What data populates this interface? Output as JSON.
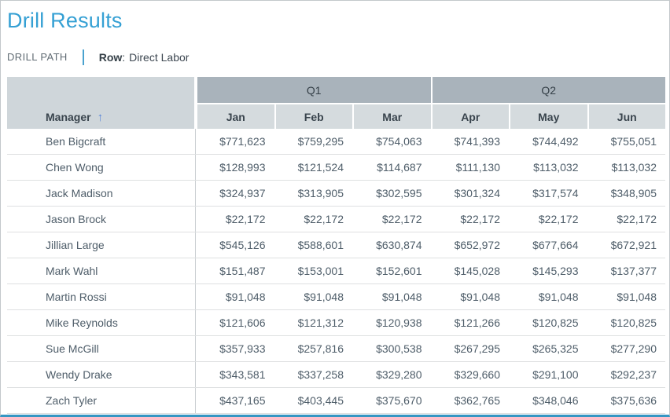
{
  "page": {
    "title": "Drill Results",
    "drill_path": {
      "label": "DRILL PATH",
      "key": "Row",
      "separator": ":",
      "value": "Direct Labor"
    }
  },
  "table": {
    "manager_header": "Manager",
    "sort_icon": "↑",
    "quarters": [
      "Q1",
      "Q2"
    ],
    "months": [
      "Jan",
      "Feb",
      "Mar",
      "Apr",
      "May",
      "Jun"
    ],
    "rows": [
      {
        "manager": "Ben Bigcraft",
        "values": [
          "$771,623",
          "$759,295",
          "$754,063",
          "$741,393",
          "$744,492",
          "$755,051"
        ]
      },
      {
        "manager": "Chen Wong",
        "values": [
          "$128,993",
          "$121,524",
          "$114,687",
          "$111,130",
          "$113,032",
          "$113,032"
        ]
      },
      {
        "manager": "Jack Madison",
        "values": [
          "$324,937",
          "$313,905",
          "$302,595",
          "$301,324",
          "$317,574",
          "$348,905"
        ]
      },
      {
        "manager": "Jason Brock",
        "values": [
          "$22,172",
          "$22,172",
          "$22,172",
          "$22,172",
          "$22,172",
          "$22,172"
        ]
      },
      {
        "manager": "Jillian Large",
        "values": [
          "$545,126",
          "$588,601",
          "$630,874",
          "$652,972",
          "$677,664",
          "$672,921"
        ]
      },
      {
        "manager": "Mark Wahl",
        "values": [
          "$151,487",
          "$153,001",
          "$152,601",
          "$145,028",
          "$145,293",
          "$137,377"
        ]
      },
      {
        "manager": "Martin Rossi",
        "values": [
          "$91,048",
          "$91,048",
          "$91,048",
          "$91,048",
          "$91,048",
          "$91,048"
        ]
      },
      {
        "manager": "Mike Reynolds",
        "values": [
          "$121,606",
          "$121,312",
          "$120,938",
          "$121,266",
          "$120,825",
          "$120,825"
        ]
      },
      {
        "manager": "Sue McGill",
        "values": [
          "$357,933",
          "$257,816",
          "$300,538",
          "$267,295",
          "$265,325",
          "$277,290"
        ]
      },
      {
        "manager": "Wendy Drake",
        "values": [
          "$343,581",
          "$337,258",
          "$329,280",
          "$329,660",
          "$291,100",
          "$292,237"
        ]
      },
      {
        "manager": "Zach Tyler",
        "values": [
          "$437,165",
          "$403,445",
          "$375,670",
          "$362,765",
          "$348,046",
          "$375,636"
        ]
      }
    ]
  },
  "colors": {
    "accent": "#35a0d4",
    "bottom_bar": "#3596c3",
    "sort_arrow": "#5b87d8",
    "quarter_header_bg": "#a9b3bb",
    "month_header_bg": "#d5dbde",
    "manager_header_bg": "#cfd6da",
    "header_text": "#39444d",
    "cell_text": "#4e5d69",
    "row_divider": "#dee0e1",
    "column_divider": "#c9ced1",
    "frame_border": "#c3c8cb",
    "drill_path_text": "#606b73",
    "drill_key_text": "#333e46"
  }
}
